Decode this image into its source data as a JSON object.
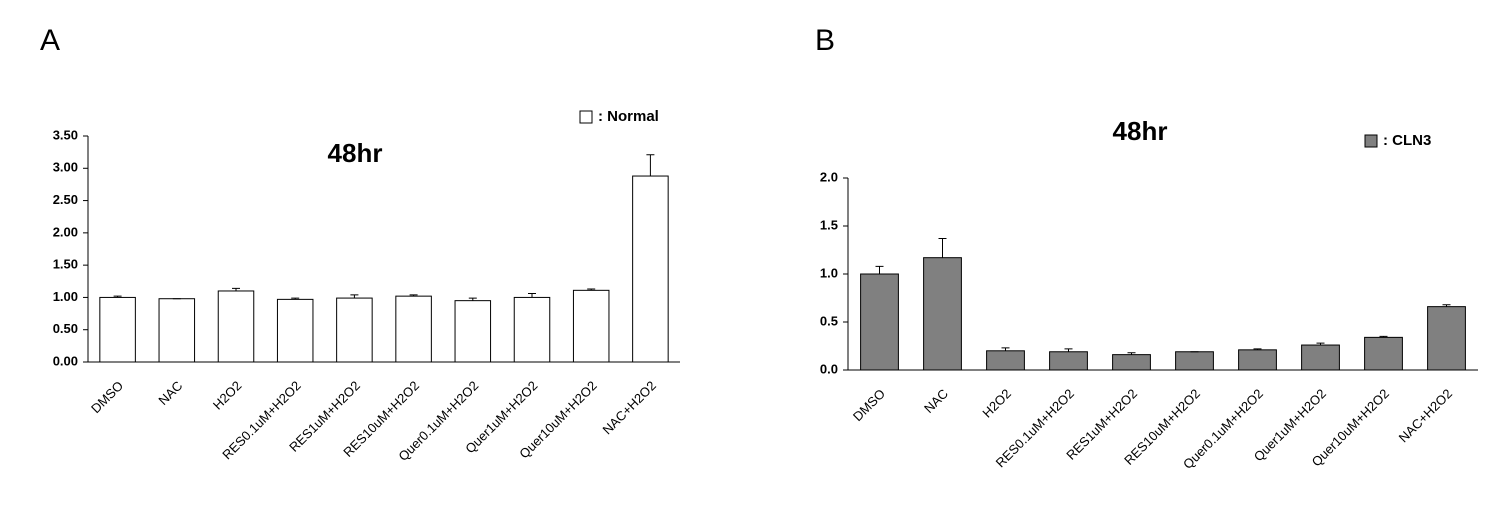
{
  "chart_data": [
    {
      "type": "bar",
      "panel_label": "A",
      "title": "48hr",
      "categories": [
        "DMSO",
        "NAC",
        "H2O2",
        "RES0.1uM+H2O2",
        "RES1uM+H2O2",
        "RES10uM+H2O2",
        "Quer0.1uM+H2O2",
        "Quer1uM+H2O2",
        "Quer10uM+H2O2",
        "NAC+H2O2"
      ],
      "series": [
        {
          "name": ": Normal",
          "color": "#ffffff",
          "values": [
            1.0,
            0.98,
            1.1,
            0.97,
            0.99,
            1.02,
            0.95,
            1.0,
            1.11,
            2.88
          ],
          "errors": [
            0.02,
            0.0,
            0.04,
            0.02,
            0.05,
            0.02,
            0.04,
            0.06,
            0.02,
            0.33
          ]
        }
      ],
      "ylim": [
        0,
        3.5
      ],
      "yticks": [
        {
          "value": 0,
          "label": "0.00"
        },
        {
          "value": 0.5,
          "label": "0.50"
        },
        {
          "value": 1,
          "label": "1.00"
        },
        {
          "value": 1.5,
          "label": "1.50"
        },
        {
          "value": 2,
          "label": "2.00"
        },
        {
          "value": 2.5,
          "label": "2.50"
        },
        {
          "value": 3,
          "label": "3.00"
        },
        {
          "value": 3.5,
          "label": "3.50"
        }
      ],
      "grid": false,
      "legend": "upper right"
    },
    {
      "type": "bar",
      "panel_label": "B",
      "title": "48hr",
      "categories": [
        "DMSO",
        "NAC",
        "H2O2",
        "RES0.1uM+H2O2",
        "RES1uM+H2O2",
        "RES10uM+H2O2",
        "Quer0.1uM+H2O2",
        "Quer1uM+H2O2",
        "Quer10uM+H2O2",
        "NAC+H2O2"
      ],
      "series": [
        {
          "name": ": CLN3",
          "color": "#808080",
          "values": [
            1.0,
            1.17,
            0.2,
            0.19,
            0.16,
            0.19,
            0.21,
            0.26,
            0.34,
            0.66
          ],
          "errors": [
            0.08,
            0.2,
            0.03,
            0.03,
            0.02,
            0.0,
            0.01,
            0.02,
            0.01,
            0.02
          ]
        }
      ],
      "ylim": [
        0,
        2
      ],
      "yticks": [
        {
          "value": 0,
          "label": "0.0"
        },
        {
          "value": 0.5,
          "label": "0.5"
        },
        {
          "value": 1,
          "label": "1.0"
        },
        {
          "value": 1.5,
          "label": "1.5"
        },
        {
          "value": 2,
          "label": "2.0"
        }
      ],
      "grid": false,
      "legend": "upper right"
    }
  ]
}
